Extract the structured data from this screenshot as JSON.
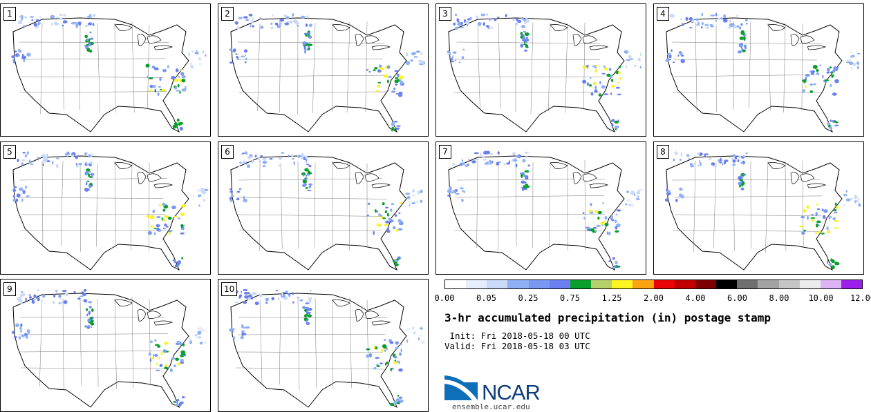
{
  "panels": [
    {
      "label": "1"
    },
    {
      "label": "2"
    },
    {
      "label": "3"
    },
    {
      "label": "4"
    },
    {
      "label": "5"
    },
    {
      "label": "6"
    },
    {
      "label": "7"
    },
    {
      "label": "8"
    },
    {
      "label": "9"
    },
    {
      "label": "10"
    }
  ],
  "legend": {
    "colors": [
      "#ffffff",
      "#e6eefc",
      "#c9d9f8",
      "#8fb0f5",
      "#7898f2",
      "#6a7ff0",
      "#0a9e2e",
      "#b5cf6b",
      "#fcf523",
      "#fca311",
      "#e80505",
      "#c00000",
      "#7d0000",
      "#000000",
      "#6f6f6f",
      "#a3a3a3",
      "#c6c6c6",
      "#ececec",
      "#ddb3f5",
      "#9b1fe8"
    ],
    "tick_labels": [
      "0.00",
      "0.05",
      "0.25",
      "0.75",
      "1.25",
      "2.00",
      "4.00",
      "6.00",
      "8.00",
      "10.00",
      "12.00"
    ]
  },
  "title": "3-hr accumulated precipitation (in) postage stamp",
  "init": " Init: Fri 2018-05-18 00 UTC",
  "valid": "Valid: Fri 2018-05-18 03 UTC",
  "logo_text": "NCAR",
  "site": "ensemble.ucar.edu"
}
